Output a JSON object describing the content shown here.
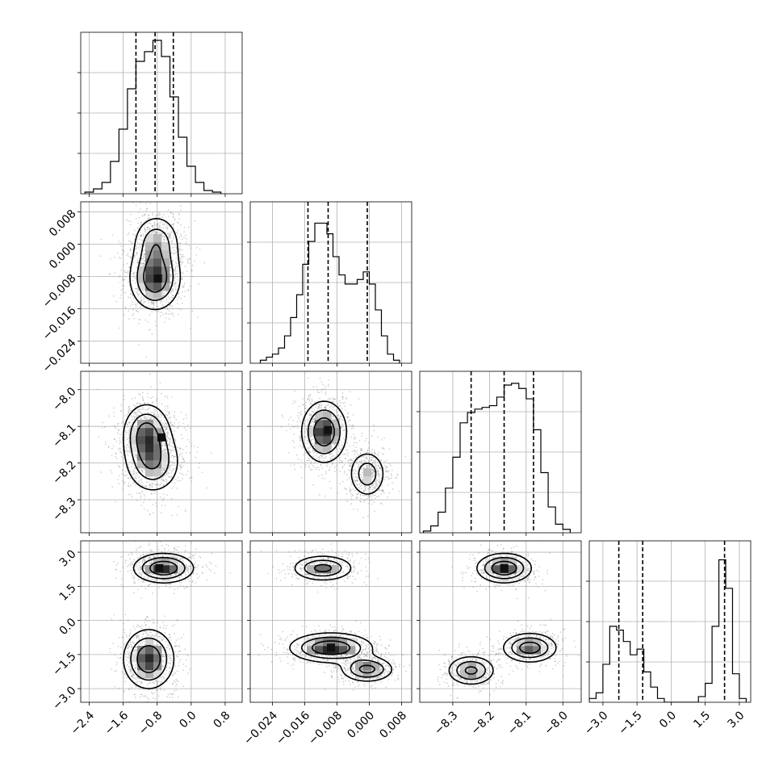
{
  "chart_data": {
    "type": "corner",
    "grid": true,
    "parameters": [
      {
        "range": [
          -2.6,
          1.2
        ],
        "ticks": [
          "−2.4",
          "−1.6",
          "−0.8",
          "0.0",
          "0.8"
        ],
        "tick_values": [
          -2.4,
          -1.6,
          -0.8,
          0.0,
          0.8
        ]
      },
      {
        "range": [
          -0.0295,
          0.0105
        ],
        "ticks": [
          "−0.024",
          "−0.016",
          "−0.008",
          "0.000",
          "0.008"
        ],
        "tick_values": [
          -0.024,
          -0.016,
          -0.008,
          0.0,
          0.008
        ]
      },
      {
        "range": [
          -8.39,
          -7.95
        ],
        "ticks": [
          "−8.3",
          "−8.2",
          "−8.1",
          "−8.0"
        ],
        "tick_values": [
          -8.3,
          -8.2,
          -8.1,
          -8.0
        ]
      },
      {
        "range": [
          -3.6,
          3.5
        ],
        "ticks": [
          "−3.0",
          "−1.5",
          "0.0",
          "1.5",
          "3.0"
        ],
        "tick_values": [
          -3.0,
          -1.5,
          0.0,
          1.5,
          3.0
        ]
      }
    ],
    "histograms": [
      {
        "param": 0,
        "bin_edges": [
          -2.5,
          -2.3,
          -2.1,
          -1.9,
          -1.7,
          -1.5,
          -1.3,
          -1.1,
          -0.9,
          -0.7,
          -0.5,
          -0.3,
          -0.1,
          0.1,
          0.3,
          0.5,
          0.7
        ],
        "counts": [
          0.01,
          0.03,
          0.07,
          0.2,
          0.4,
          0.65,
          0.82,
          0.88,
          0.95,
          0.85,
          0.6,
          0.35,
          0.17,
          0.07,
          0.02,
          0.01
        ],
        "ymax": 1.0,
        "quantiles": [
          -1.3,
          -0.85,
          -0.42
        ]
      },
      {
        "param": 1,
        "bin_edges": [
          -0.027,
          -0.0255,
          -0.024,
          -0.0225,
          -0.021,
          -0.0195,
          -0.018,
          -0.0165,
          -0.015,
          -0.0135,
          -0.012,
          -0.0105,
          -0.009,
          -0.0075,
          -0.006,
          -0.0045,
          -0.003,
          -0.0015,
          0.0,
          0.0015,
          0.003,
          0.0045,
          0.006,
          0.0075
        ],
        "counts": [
          0.02,
          0.04,
          0.06,
          0.1,
          0.18,
          0.3,
          0.45,
          0.65,
          0.8,
          0.92,
          0.92,
          0.85,
          0.7,
          0.58,
          0.52,
          0.52,
          0.55,
          0.6,
          0.52,
          0.35,
          0.18,
          0.06,
          0.02
        ],
        "ymax": 1.06,
        "quantiles": [
          -0.0152,
          -0.0102,
          -0.0005
        ]
      },
      {
        "param": 2,
        "bin_edges": [
          -8.38,
          -8.36,
          -8.34,
          -8.32,
          -8.3,
          -8.28,
          -8.26,
          -8.24,
          -8.22,
          -8.2,
          -8.18,
          -8.16,
          -8.14,
          -8.12,
          -8.1,
          -8.08,
          -8.06,
          -8.04,
          -8.02,
          -8.0,
          -7.98
        ],
        "counts": [
          0.01,
          0.04,
          0.12,
          0.26,
          0.44,
          0.64,
          0.7,
          0.72,
          0.73,
          0.74,
          0.79,
          0.86,
          0.87,
          0.84,
          0.78,
          0.6,
          0.35,
          0.15,
          0.05,
          0.02
        ],
        "ymax": 0.94,
        "quantiles": [
          -8.25,
          -8.16,
          -8.08
        ]
      },
      {
        "param": 3,
        "bin_edges": [
          -3.6,
          -3.3,
          -3.0,
          -2.7,
          -2.4,
          -2.1,
          -1.8,
          -1.5,
          -1.2,
          -0.9,
          -0.6,
          -0.3,
          0.0,
          0.3,
          0.6,
          0.9,
          1.2,
          1.5,
          1.8,
          2.1,
          2.4,
          2.7,
          3.0,
          3.3
        ],
        "counts": [
          0.02,
          0.05,
          0.2,
          0.4,
          0.38,
          0.32,
          0.25,
          0.28,
          0.16,
          0.08,
          0.02,
          0.0,
          0.0,
          0.0,
          0.0,
          0.0,
          0.03,
          0.1,
          0.4,
          0.75,
          0.6,
          0.15,
          0.02
        ],
        "ymax": 0.85,
        "quantiles": [
          -2.3,
          -1.25,
          2.35
        ]
      }
    ],
    "contours_2d": [
      {
        "x_param": 0,
        "y_param": 1,
        "modes": [
          {
            "x": -0.85,
            "y": -0.0085,
            "sx": 0.32,
            "sy": 0.0042,
            "w": 1.0
          },
          {
            "x": -0.82,
            "y": 0.0005,
            "sx": 0.3,
            "sy": 0.0038,
            "w": 0.6
          }
        ],
        "peak": [
          -0.78,
          -0.0085
        ],
        "rot": 0
      },
      {
        "x_param": 0,
        "y_param": 2,
        "modes": [
          {
            "x": -1.05,
            "y": -8.12,
            "sx": 0.3,
            "sy": 0.045,
            "w": 1.0
          },
          {
            "x": -0.9,
            "y": -8.2,
            "sx": 0.35,
            "sy": 0.045,
            "w": 0.8
          }
        ],
        "peak": [
          -0.7,
          -8.13
        ],
        "rot": -0.45
      },
      {
        "x_param": 0,
        "y_param": 3,
        "modes": [
          {
            "x": -0.65,
            "y": 2.3,
            "sx": 0.38,
            "sy": 0.35,
            "w": 1.0
          },
          {
            "x": -1.0,
            "y": -1.7,
            "sx": 0.32,
            "sy": 0.7,
            "w": 1.0
          }
        ],
        "peak": [
          -0.75,
          2.3
        ],
        "rot": -0.35
      },
      {
        "x_param": 1,
        "y_param": 2,
        "modes": [
          {
            "x": -0.0112,
            "y": -8.115,
            "sx": 0.003,
            "sy": 0.045,
            "w": 1.0
          },
          {
            "x": -0.0005,
            "y": -8.23,
            "sx": 0.0025,
            "sy": 0.035,
            "w": 0.6
          }
        ],
        "peak": [
          -0.0102,
          -8.11
        ],
        "rot": 0
      },
      {
        "x_param": 1,
        "y_param": 3,
        "modes": [
          {
            "x": -0.0115,
            "y": 2.3,
            "sx": 0.004,
            "sy": 0.3,
            "w": 0.8
          },
          {
            "x": -0.0095,
            "y": -1.2,
            "sx": 0.0055,
            "sy": 0.35,
            "w": 1.0
          },
          {
            "x": -0.0005,
            "y": -2.15,
            "sx": 0.0035,
            "sy": 0.3,
            "w": 0.8
          }
        ],
        "peak": [
          -0.0095,
          -1.2
        ],
        "rot": -0.35
      },
      {
        "x_param": 2,
        "y_param": 3,
        "modes": [
          {
            "x": -8.16,
            "y": 2.3,
            "sx": 0.04,
            "sy": 0.35,
            "w": 0.9
          },
          {
            "x": -8.25,
            "y": -2.2,
            "sx": 0.035,
            "sy": 0.35,
            "w": 0.7
          },
          {
            "x": -8.09,
            "y": -1.2,
            "sx": 0.04,
            "sy": 0.35,
            "w": 0.8
          }
        ],
        "peak": [
          -8.16,
          2.3
        ],
        "rot": 0.5
      }
    ]
  }
}
